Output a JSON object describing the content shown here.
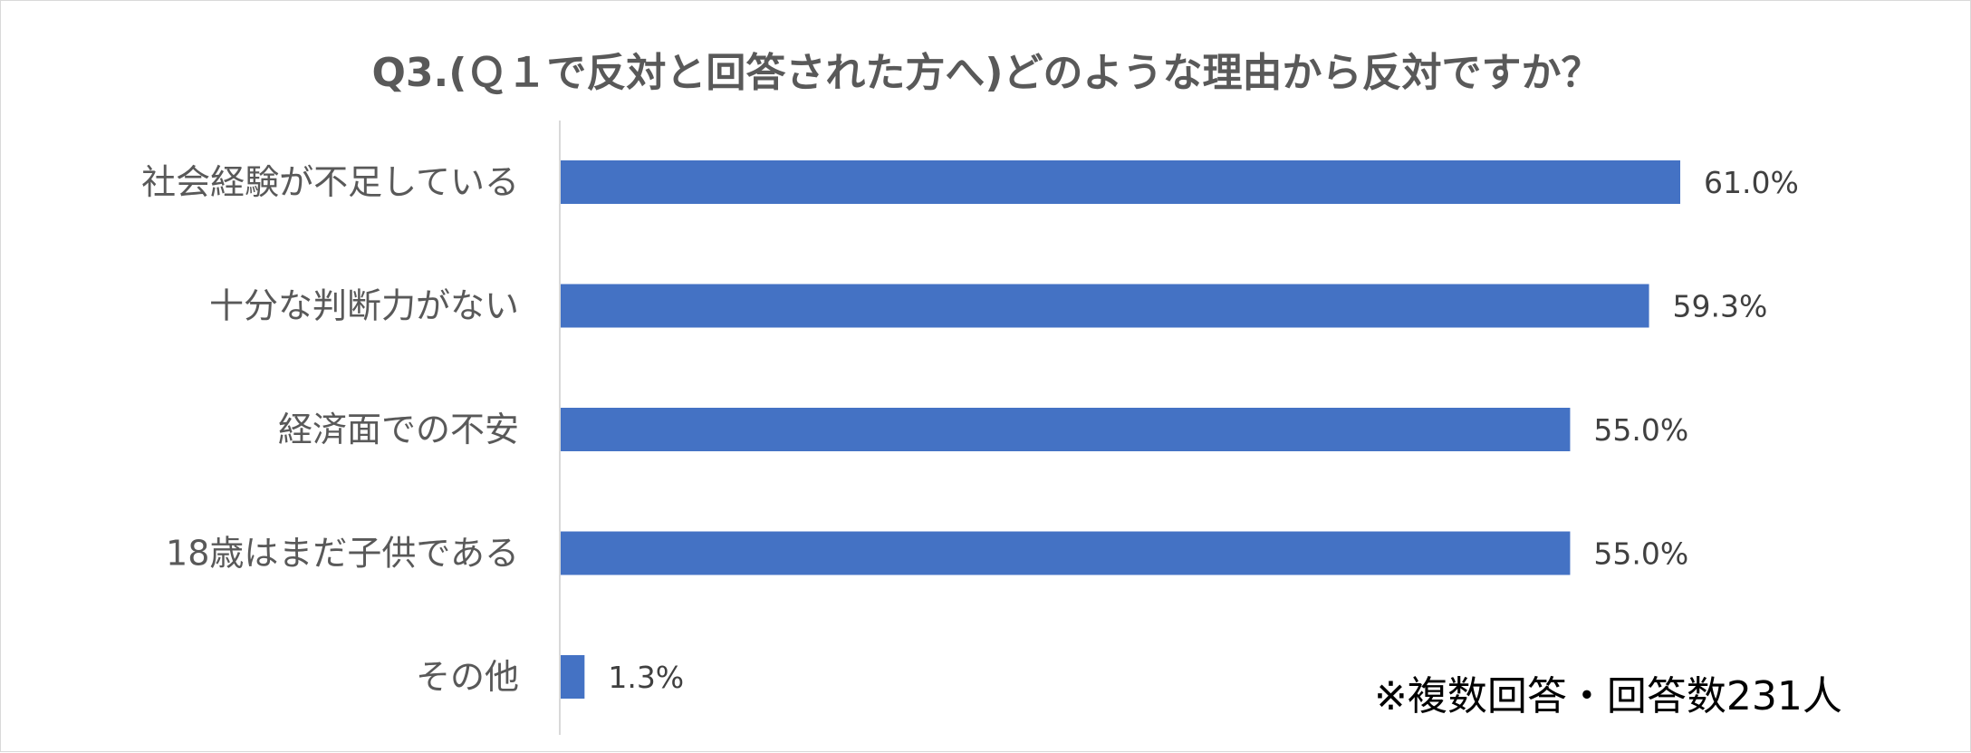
{
  "chart_data": {
    "type": "bar",
    "orientation": "horizontal",
    "title": "Q3.(Ｑ１で反対と回答された方へ)どのような理由から反対ですか？",
    "categories": [
      "社会経験が不足している",
      "十分な判断力がない",
      "経済面での不安",
      "18歳はまだ子供である",
      "その他"
    ],
    "values": [
      61.0,
      59.3,
      55.0,
      55.0,
      1.3
    ],
    "value_labels": [
      "61.0%",
      "59.3%",
      "55.0%",
      "55.0%",
      "1.3%"
    ],
    "unit": "%",
    "xlim": [
      0,
      61.0
    ],
    "grid": false,
    "legend": "none",
    "bar_color": "#4472C4",
    "axis_color": "#d9d9d9",
    "note": "※複数回答・回答数231人"
  }
}
